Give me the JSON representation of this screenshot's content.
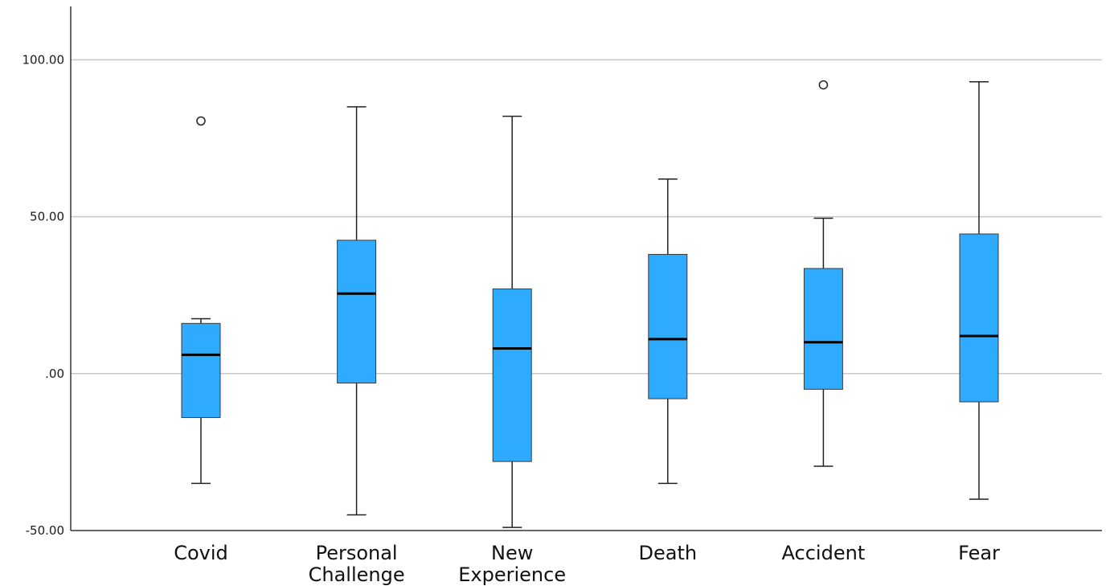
{
  "chart_data": {
    "type": "boxplot",
    "title": "",
    "xlabel": "",
    "ylabel": "",
    "ylim": [
      -50,
      117
    ],
    "yticks": [
      {
        "value": 100,
        "label": "100.00"
      },
      {
        "value": 50,
        "label": "50.00"
      },
      {
        "value": 0,
        "label": ".00"
      },
      {
        "value": -50,
        "label": "-50.00"
      }
    ],
    "grid": true,
    "box_color": "#2eabff",
    "median_color": "#000000",
    "gridline_color": "#c8c8c8",
    "categories": [
      {
        "lines": [
          "Covid"
        ],
        "whisker_low": -35,
        "q1": -14,
        "median": 6,
        "q3": 16,
        "whisker_high": 17.5,
        "outliers": [
          80.5
        ]
      },
      {
        "lines": [
          "Personal",
          "Challenge"
        ],
        "whisker_low": -45,
        "q1": -3,
        "median": 25.5,
        "q3": 42.5,
        "whisker_high": 85,
        "outliers": []
      },
      {
        "lines": [
          "New",
          "Experience"
        ],
        "whisker_low": -49,
        "q1": -28,
        "median": 8,
        "q3": 27,
        "whisker_high": 82,
        "outliers": []
      },
      {
        "lines": [
          "Death"
        ],
        "whisker_low": -35,
        "q1": -8,
        "median": 11,
        "q3": 38,
        "whisker_high": 62,
        "outliers": []
      },
      {
        "lines": [
          "Accident"
        ],
        "whisker_low": -29.5,
        "q1": -5,
        "median": 10,
        "q3": 33.5,
        "whisker_high": 49.5,
        "outliers": [
          92
        ]
      },
      {
        "lines": [
          "Fear"
        ],
        "whisker_low": -40,
        "q1": -9,
        "median": 12,
        "q3": 44.5,
        "whisker_high": 93,
        "outliers": []
      }
    ]
  }
}
